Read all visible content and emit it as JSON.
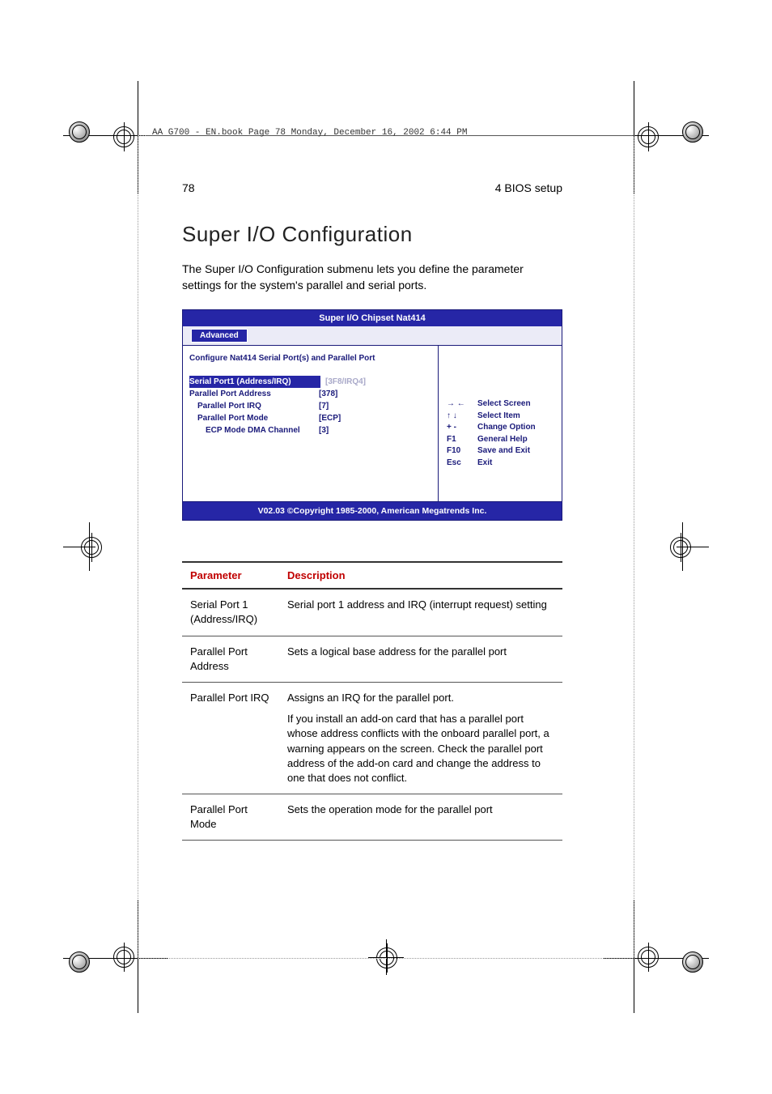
{
  "header": {
    "text": "AA G700 - EN.book  Page 78  Monday, December 16, 2002  6:44 PM"
  },
  "page": {
    "number": "78",
    "chapter": "4 BIOS setup",
    "section_title": "Super I/O Configuration",
    "intro": "The  Super I/O Configuration submenu lets you define the parameter settings for the system's parallel and serial ports."
  },
  "bios": {
    "title": "Super I/O Chipset Nat414",
    "tab": "Advanced",
    "subtitle": "Configure Nat414 Serial Port(s) and Parallel Port",
    "rows": [
      {
        "label": "Serial Port1 (Address/IRQ)",
        "value": "[3F8/IRQ4]",
        "selected": true,
        "indent": 0
      },
      {
        "label": "Parallel Port Address",
        "value": "[378]",
        "selected": false,
        "indent": 0
      },
      {
        "label": "Parallel Port IRQ",
        "value": "[7]",
        "selected": false,
        "indent": 1
      },
      {
        "label": "Parallel Port Mode",
        "value": "[ECP]",
        "selected": false,
        "indent": 1
      },
      {
        "label": "ECP Mode DMA Channel",
        "value": "[3]",
        "selected": false,
        "indent": 2
      }
    ],
    "nav": [
      {
        "key": "→ ←",
        "label": "Select Screen"
      },
      {
        "key": "↑ ↓",
        "label": "Select Item"
      },
      {
        "key": "+ -",
        "label": "Change Option"
      },
      {
        "key": "F1",
        "label": "General Help"
      },
      {
        "key": "F10",
        "label": "Save and Exit"
      },
      {
        "key": "Esc",
        "label": "Exit"
      }
    ],
    "footer": "V02.03 ©Copyright 1985-2000, American Megatrends Inc."
  },
  "table": {
    "head_param": "Parameter",
    "head_desc": "Description",
    "rows": [
      {
        "param": "Serial Port 1 (Address/IRQ)",
        "desc": "Serial port 1 address and IRQ (interrupt request) setting"
      },
      {
        "param": "Parallel Port Address",
        "desc": "Sets a logical base address for the parallel port"
      },
      {
        "param": "Parallel Port IRQ",
        "desc": "Assigns an IRQ for the parallel port.",
        "desc2": "If you install an add-on card that has a parallel port whose address conflicts with the onboard parallel port, a warning appears on the screen.  Check the parallel port address of the add-on card and change the address to one that does not conflict."
      },
      {
        "param": "Parallel Port Mode",
        "desc": "Sets the operation mode for the parallel port"
      }
    ]
  }
}
